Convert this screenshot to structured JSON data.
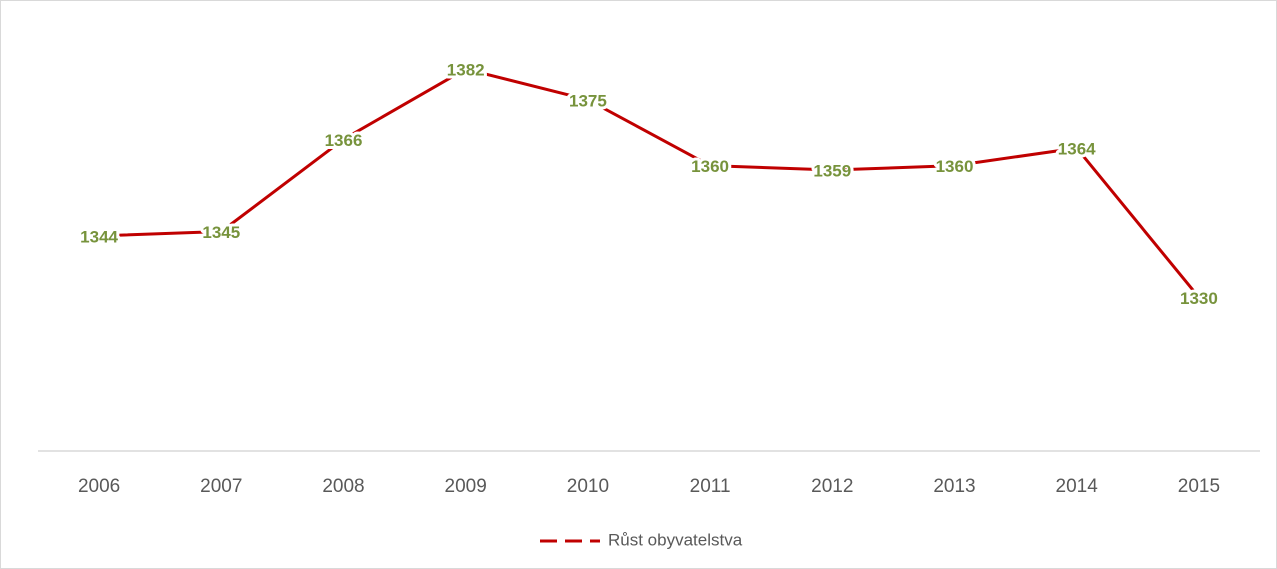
{
  "chart_data": {
    "type": "line",
    "categories": [
      "2006",
      "2007",
      "2008",
      "2009",
      "2010",
      "2011",
      "2012",
      "2013",
      "2014",
      "2015"
    ],
    "series": [
      {
        "name": "Růst obyvatelstva",
        "color": "#c00000",
        "values": [
          1344,
          1345,
          1366,
          1382,
          1375,
          1360,
          1359,
          1360,
          1364,
          1330
        ]
      }
    ],
    "ylim": [
      1295,
      1395
    ],
    "data_label_color": "#77933c"
  }
}
